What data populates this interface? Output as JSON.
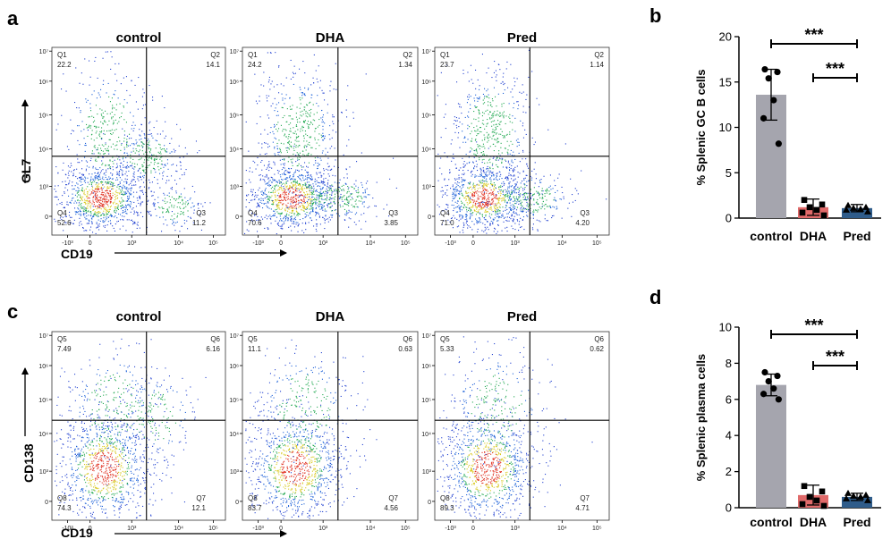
{
  "chart_data": [
    {
      "type": "scatter",
      "panel_label": "a",
      "xlabel": "CD19",
      "ylabel": "GL7",
      "x_ticks": [
        "-10³",
        "0",
        "10³",
        "10⁴",
        "10⁵"
      ],
      "y_ticks": [
        "10⁷",
        "10⁶",
        "10⁵",
        "10⁴",
        "10³",
        "0"
      ],
      "plots": [
        {
          "title": "control",
          "quadrants": [
            {
              "name": "Q1",
              "value": "22.2"
            },
            {
              "name": "Q2",
              "value": "14.1"
            },
            {
              "name": "Q3",
              "value": "11.2"
            },
            {
              "name": "Q4",
              "value": "52.6"
            }
          ]
        },
        {
          "title": "DHA",
          "quadrants": [
            {
              "name": "Q1",
              "value": "24.2"
            },
            {
              "name": "Q2",
              "value": "1.34"
            },
            {
              "name": "Q3",
              "value": "3.85"
            },
            {
              "name": "Q4",
              "value": "70.6"
            }
          ]
        },
        {
          "title": "Pred",
          "quadrants": [
            {
              "name": "Q1",
              "value": "23.7"
            },
            {
              "name": "Q2",
              "value": "1.14"
            },
            {
              "name": "Q3",
              "value": "4.20"
            },
            {
              "name": "Q4",
              "value": "71.0"
            }
          ]
        }
      ]
    },
    {
      "type": "bar",
      "panel_label": "b",
      "categories": [
        "control",
        "DHA",
        "Pred"
      ],
      "values": [
        13.6,
        1.2,
        1.1
      ],
      "errors": [
        2.8,
        0.9,
        0.4
      ],
      "points": [
        [
          16.4,
          16.1,
          15.4,
          13.0,
          11.0,
          8.2
        ],
        [
          2.0,
          1.5,
          1.2,
          0.9,
          0.6,
          0.3
        ],
        [
          1.4,
          1.2,
          1.1,
          1.0,
          0.9,
          0.7
        ]
      ],
      "bar_colors": [
        "#a5a5ae",
        "#e06a6a",
        "#2f5c8a"
      ],
      "ylabel": "% Splenic GC B cells",
      "ylim": [
        0,
        20
      ],
      "yticks": [
        "0",
        "5",
        "10",
        "15",
        "20"
      ],
      "significance": [
        {
          "from": "control",
          "to": "Pred",
          "label": "***"
        },
        {
          "from": "DHA",
          "to": "Pred",
          "label": "***"
        }
      ]
    },
    {
      "type": "scatter",
      "panel_label": "c",
      "xlabel": "CD19",
      "ylabel": "CD138",
      "x_ticks": [
        "-10³",
        "0",
        "10³",
        "10⁴",
        "10⁵"
      ],
      "y_ticks": [
        "10⁷",
        "10⁶",
        "10⁵",
        "10⁴",
        "10³",
        "0"
      ],
      "plots": [
        {
          "title": "control",
          "quadrants": [
            {
              "name": "Q5",
              "value": "7.49"
            },
            {
              "name": "Q6",
              "value": "6.16"
            },
            {
              "name": "Q7",
              "value": "12.1"
            },
            {
              "name": "Q8",
              "value": "74.3"
            }
          ]
        },
        {
          "title": "DHA",
          "quadrants": [
            {
              "name": "Q5",
              "value": "11.1"
            },
            {
              "name": "Q6",
              "value": "0.63"
            },
            {
              "name": "Q7",
              "value": "4.56"
            },
            {
              "name": "Q8",
              "value": "83.7"
            }
          ]
        },
        {
          "title": "Pred",
          "quadrants": [
            {
              "name": "Q5",
              "value": "5.33"
            },
            {
              "name": "Q6",
              "value": "0.62"
            },
            {
              "name": "Q7",
              "value": "4.71"
            },
            {
              "name": "Q8",
              "value": "89.3"
            }
          ]
        }
      ]
    },
    {
      "type": "bar",
      "panel_label": "d",
      "categories": [
        "control",
        "DHA",
        "Pred"
      ],
      "values": [
        6.8,
        0.7,
        0.6
      ],
      "errors": [
        0.6,
        0.55,
        0.2
      ],
      "points": [
        [
          7.5,
          7.3,
          7.0,
          6.6,
          6.3,
          6.0
        ],
        [
          1.2,
          0.9,
          0.6,
          0.4,
          0.2,
          0.1
        ],
        [
          0.8,
          0.7,
          0.65,
          0.6,
          0.5,
          0.4
        ]
      ],
      "bar_colors": [
        "#a5a5ae",
        "#e06a6a",
        "#2f5c8a"
      ],
      "ylabel": "% Splenic plasma cells",
      "ylim": [
        0,
        10
      ],
      "yticks": [
        "0",
        "2",
        "4",
        "6",
        "8",
        "10"
      ],
      "significance": [
        {
          "from": "control",
          "to": "Pred",
          "label": "***"
        },
        {
          "from": "DHA",
          "to": "Pred",
          "label": "***"
        }
      ]
    }
  ]
}
